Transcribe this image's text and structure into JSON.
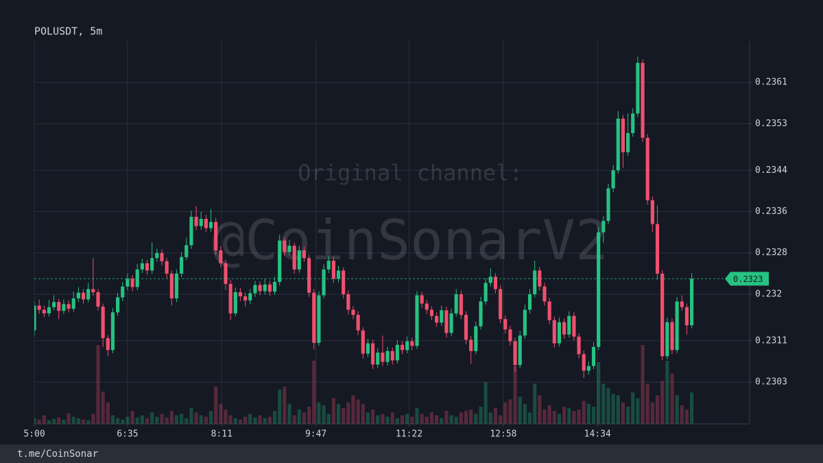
{
  "chart_data": {
    "type": "candlestick",
    "title": "POLUSDT, 5m",
    "watermark": [
      "Original channel:",
      "@CoinSonarV2"
    ],
    "footer": "t.me/CoinSonar",
    "up_color": "#26c281",
    "down_color": "#f0506e",
    "xlim": [
      300,
      1029
    ],
    "ylim": [
      0.22949,
      0.2369
    ],
    "yticks": [
      0.2303,
      0.2311,
      0.232,
      0.2328,
      0.2336,
      0.2344,
      0.2353,
      0.2361
    ],
    "xticks": [
      {
        "value": 300,
        "label": "5:00"
      },
      {
        "value": 395,
        "label": "6:35"
      },
      {
        "value": 491,
        "label": "8:11"
      },
      {
        "value": 587,
        "label": "9:47"
      },
      {
        "value": 682,
        "label": "11:22"
      },
      {
        "value": 778,
        "label": "12:58"
      },
      {
        "value": 874,
        "label": "14:34"
      }
    ],
    "grid": true,
    "x": [
      300,
      305,
      310,
      315,
      320,
      325,
      330,
      335,
      340,
      345,
      350,
      355,
      360,
      365,
      370,
      375,
      380,
      385,
      390,
      395,
      400,
      405,
      410,
      415,
      420,
      425,
      430,
      435,
      440,
      445,
      450,
      455,
      460,
      465,
      470,
      475,
      480,
      485,
      490,
      495,
      500,
      505,
      510,
      515,
      520,
      525,
      530,
      535,
      540,
      545,
      550,
      555,
      560,
      565,
      570,
      575,
      580,
      585,
      590,
      595,
      600,
      605,
      610,
      615,
      620,
      625,
      630,
      635,
      640,
      645,
      650,
      655,
      660,
      665,
      670,
      675,
      680,
      685,
      690,
      695,
      700,
      705,
      710,
      715,
      720,
      725,
      730,
      735,
      740,
      745,
      750,
      755,
      760,
      765,
      770,
      775,
      780,
      785,
      790,
      795,
      800,
      805,
      810,
      815,
      820,
      825,
      830,
      835,
      840,
      845,
      850,
      855,
      860,
      865,
      870,
      875,
      880,
      885,
      890,
      895,
      900,
      905,
      910,
      915,
      920,
      925,
      930,
      935,
      940,
      945,
      950,
      955,
      960,
      965,
      970
    ],
    "ohlc": [
      [
        0.2313,
        0.23186,
        0.2312,
        0.23178
      ],
      [
        0.23178,
        0.2319,
        0.23162,
        0.2317
      ],
      [
        0.2317,
        0.23178,
        0.23156,
        0.23163
      ],
      [
        0.23163,
        0.23189,
        0.23157,
        0.23175
      ],
      [
        0.23175,
        0.23198,
        0.23169,
        0.23185
      ],
      [
        0.23185,
        0.23191,
        0.23152,
        0.23168
      ],
      [
        0.23168,
        0.2319,
        0.23162,
        0.23181
      ],
      [
        0.23181,
        0.23188,
        0.23165,
        0.23172
      ],
      [
        0.23172,
        0.23205,
        0.23166,
        0.23192
      ],
      [
        0.23192,
        0.23214,
        0.23185,
        0.23203
      ],
      [
        0.23203,
        0.2321,
        0.23182,
        0.2319
      ],
      [
        0.2319,
        0.23222,
        0.23184,
        0.2321
      ],
      [
        0.2321,
        0.2327,
        0.23197,
        0.23204
      ],
      [
        0.23204,
        0.2321,
        0.23168,
        0.23176
      ],
      [
        0.23176,
        0.23182,
        0.23098,
        0.23115
      ],
      [
        0.23115,
        0.23121,
        0.2308,
        0.23092
      ],
      [
        0.23092,
        0.23173,
        0.23086,
        0.23165
      ],
      [
        0.23165,
        0.23203,
        0.23158,
        0.23194
      ],
      [
        0.23194,
        0.23224,
        0.23187,
        0.23215
      ],
      [
        0.23215,
        0.2324,
        0.23208,
        0.2323
      ],
      [
        0.2323,
        0.23237,
        0.23206,
        0.23214
      ],
      [
        0.23214,
        0.23259,
        0.23208,
        0.23248
      ],
      [
        0.23248,
        0.23269,
        0.23241,
        0.2326
      ],
      [
        0.2326,
        0.23267,
        0.23238,
        0.23246
      ],
      [
        0.23246,
        0.233,
        0.2324,
        0.2327
      ],
      [
        0.2327,
        0.23288,
        0.23263,
        0.2328
      ],
      [
        0.2328,
        0.23287,
        0.23256,
        0.23264
      ],
      [
        0.23264,
        0.2327,
        0.23231,
        0.2324
      ],
      [
        0.2324,
        0.23246,
        0.23178,
        0.23192
      ],
      [
        0.23192,
        0.23248,
        0.23185,
        0.2324
      ],
      [
        0.2324,
        0.23281,
        0.23233,
        0.23272
      ],
      [
        0.23272,
        0.2331,
        0.23266,
        0.23295
      ],
      [
        0.23295,
        0.23362,
        0.23288,
        0.2335
      ],
      [
        0.2335,
        0.23371,
        0.23324,
        0.23332
      ],
      [
        0.23332,
        0.2336,
        0.23325,
        0.23346
      ],
      [
        0.23346,
        0.23354,
        0.2332,
        0.23328
      ],
      [
        0.23328,
        0.23365,
        0.23321,
        0.2334
      ],
      [
        0.2334,
        0.23348,
        0.23276,
        0.23285
      ],
      [
        0.23285,
        0.23293,
        0.23252,
        0.2326
      ],
      [
        0.2326,
        0.23267,
        0.23208,
        0.2322
      ],
      [
        0.2322,
        0.23228,
        0.2315,
        0.23163
      ],
      [
        0.23163,
        0.23213,
        0.23158,
        0.23204
      ],
      [
        0.23204,
        0.23212,
        0.23187,
        0.23196
      ],
      [
        0.23196,
        0.23203,
        0.23176,
        0.23188
      ],
      [
        0.23188,
        0.2321,
        0.23181,
        0.23202
      ],
      [
        0.23202,
        0.23226,
        0.23195,
        0.23218
      ],
      [
        0.23218,
        0.23225,
        0.23198,
        0.23206
      ],
      [
        0.23206,
        0.2323,
        0.23199,
        0.23219
      ],
      [
        0.23219,
        0.23226,
        0.23197,
        0.23205
      ],
      [
        0.23205,
        0.23234,
        0.23199,
        0.23224
      ],
      [
        0.23224,
        0.23315,
        0.23217,
        0.23304
      ],
      [
        0.23304,
        0.2331,
        0.23275,
        0.23282
      ],
      [
        0.23282,
        0.23305,
        0.23275,
        0.23294
      ],
      [
        0.23294,
        0.233,
        0.2324,
        0.23248
      ],
      [
        0.23248,
        0.23294,
        0.23242,
        0.23285
      ],
      [
        0.23285,
        0.23292,
        0.23263,
        0.2327
      ],
      [
        0.2327,
        0.23276,
        0.23195,
        0.23203
      ],
      [
        0.23203,
        0.2321,
        0.23093,
        0.23106
      ],
      [
        0.23106,
        0.23206,
        0.231,
        0.23198
      ],
      [
        0.23198,
        0.23258,
        0.23192,
        0.23248
      ],
      [
        0.23248,
        0.23274,
        0.23241,
        0.23265
      ],
      [
        0.23265,
        0.23272,
        0.23222,
        0.2323
      ],
      [
        0.2323,
        0.23255,
        0.23223,
        0.23246
      ],
      [
        0.23246,
        0.23252,
        0.23192,
        0.232
      ],
      [
        0.232,
        0.23207,
        0.23161,
        0.2317
      ],
      [
        0.2317,
        0.23177,
        0.23152,
        0.2316
      ],
      [
        0.2316,
        0.23167,
        0.23121,
        0.2313
      ],
      [
        0.2313,
        0.23136,
        0.23075,
        0.23085
      ],
      [
        0.23085,
        0.23114,
        0.23078,
        0.23105
      ],
      [
        0.23105,
        0.23112,
        0.23055,
        0.23064
      ],
      [
        0.23064,
        0.23096,
        0.23057,
        0.23087
      ],
      [
        0.23087,
        0.2312,
        0.23061,
        0.23069
      ],
      [
        0.23069,
        0.23098,
        0.23062,
        0.2309
      ],
      [
        0.2309,
        0.23097,
        0.23064,
        0.23072
      ],
      [
        0.23072,
        0.23111,
        0.23066,
        0.23102
      ],
      [
        0.23102,
        0.23109,
        0.23084,
        0.23092
      ],
      [
        0.23092,
        0.23118,
        0.23086,
        0.23109
      ],
      [
        0.23109,
        0.23116,
        0.23092,
        0.231
      ],
      [
        0.231,
        0.23206,
        0.23094,
        0.23198
      ],
      [
        0.23198,
        0.23205,
        0.23174,
        0.23182
      ],
      [
        0.23182,
        0.23189,
        0.23162,
        0.2317
      ],
      [
        0.2317,
        0.23177,
        0.2315,
        0.23158
      ],
      [
        0.23158,
        0.23165,
        0.23137,
        0.23145
      ],
      [
        0.23145,
        0.23178,
        0.23139,
        0.23169
      ],
      [
        0.23169,
        0.23176,
        0.23116,
        0.23125
      ],
      [
        0.23125,
        0.23172,
        0.23119,
        0.23163
      ],
      [
        0.23163,
        0.2321,
        0.23157,
        0.232
      ],
      [
        0.232,
        0.23207,
        0.23152,
        0.2316
      ],
      [
        0.2316,
        0.23167,
        0.23103,
        0.23112
      ],
      [
        0.23112,
        0.23119,
        0.23065,
        0.2309
      ],
      [
        0.2309,
        0.23147,
        0.23084,
        0.23138
      ],
      [
        0.23138,
        0.23195,
        0.23132,
        0.23186
      ],
      [
        0.23186,
        0.23231,
        0.2318,
        0.23222
      ],
      [
        0.23222,
        0.2325,
        0.23215,
        0.23234
      ],
      [
        0.23234,
        0.23241,
        0.23202,
        0.2321
      ],
      [
        0.2321,
        0.23217,
        0.23144,
        0.23152
      ],
      [
        0.23152,
        0.23159,
        0.23124,
        0.23132
      ],
      [
        0.23132,
        0.23139,
        0.23101,
        0.23109
      ],
      [
        0.23109,
        0.23116,
        0.2305,
        0.23063
      ],
      [
        0.23063,
        0.23129,
        0.23057,
        0.2312
      ],
      [
        0.2312,
        0.2318,
        0.23114,
        0.2317
      ],
      [
        0.2317,
        0.2321,
        0.23163,
        0.232
      ],
      [
        0.232,
        0.23265,
        0.23194,
        0.23246
      ],
      [
        0.23246,
        0.23253,
        0.23207,
        0.23215
      ],
      [
        0.23215,
        0.23222,
        0.23178,
        0.23186
      ],
      [
        0.23186,
        0.23193,
        0.23142,
        0.2315
      ],
      [
        0.2315,
        0.23157,
        0.23097,
        0.23105
      ],
      [
        0.23105,
        0.23155,
        0.23099,
        0.23146
      ],
      [
        0.23146,
        0.23153,
        0.23114,
        0.23122
      ],
      [
        0.23122,
        0.23167,
        0.23116,
        0.23158
      ],
      [
        0.23158,
        0.23165,
        0.2311,
        0.23118
      ],
      [
        0.23118,
        0.23125,
        0.23076,
        0.23084
      ],
      [
        0.23084,
        0.23091,
        0.23038,
        0.23052
      ],
      [
        0.23052,
        0.2307,
        0.23044,
        0.23061
      ],
      [
        0.23061,
        0.23107,
        0.23055,
        0.23098
      ],
      [
        0.23098,
        0.2333,
        0.23092,
        0.2332
      ],
      [
        0.2332,
        0.23351,
        0.233,
        0.23342
      ],
      [
        0.23342,
        0.23414,
        0.23336,
        0.23405
      ],
      [
        0.23405,
        0.2345,
        0.23398,
        0.2344
      ],
      [
        0.2344,
        0.23555,
        0.23434,
        0.2354
      ],
      [
        0.2354,
        0.23547,
        0.23445,
        0.23475
      ],
      [
        0.23475,
        0.2355,
        0.23468,
        0.23512
      ],
      [
        0.23512,
        0.2356,
        0.23505,
        0.2355
      ],
      [
        0.2355,
        0.2366,
        0.23543,
        0.23648
      ],
      [
        0.23648,
        0.23655,
        0.23495,
        0.23503
      ],
      [
        0.23503,
        0.2351,
        0.23374,
        0.23382
      ],
      [
        0.23382,
        0.23389,
        0.2332,
        0.23336
      ],
      [
        0.23336,
        0.23372,
        0.23228,
        0.2324
      ],
      [
        0.2324,
        0.23247,
        0.23072,
        0.2308
      ],
      [
        0.2308,
        0.23155,
        0.23074,
        0.23146
      ],
      [
        0.23146,
        0.23153,
        0.23084,
        0.23092
      ],
      [
        0.23092,
        0.23195,
        0.23086,
        0.23186
      ],
      [
        0.23186,
        0.23198,
        0.23168,
        0.23175
      ],
      [
        0.23175,
        0.23182,
        0.23122,
        0.2314
      ],
      [
        0.2314,
        0.23241,
        0.23134,
        0.2323
      ]
    ],
    "volume": [
      8,
      6,
      12,
      5,
      7,
      9,
      6,
      15,
      10,
      8,
      6,
      5,
      14,
      110,
      45,
      30,
      12,
      8,
      6,
      10,
      18,
      9,
      12,
      8,
      16,
      10,
      14,
      9,
      18,
      12,
      14,
      8,
      22,
      16,
      12,
      10,
      18,
      52,
      28,
      20,
      12,
      8,
      6,
      10,
      14,
      9,
      12,
      8,
      10,
      18,
      48,
      52,
      28,
      12,
      20,
      16,
      24,
      88,
      30,
      26,
      14,
      36,
      28,
      22,
      30,
      40,
      34,
      28,
      16,
      20,
      12,
      14,
      10,
      16,
      8,
      12,
      14,
      10,
      22,
      14,
      10,
      16,
      12,
      8,
      18,
      12,
      10,
      16,
      18,
      20,
      14,
      24,
      58,
      16,
      22,
      12,
      30,
      34,
      80,
      38,
      28,
      16,
      56,
      40,
      20,
      26,
      18,
      14,
      24,
      22,
      18,
      20,
      32,
      28,
      24,
      86,
      56,
      50,
      42,
      40,
      30,
      24,
      44,
      36,
      110,
      56,
      30,
      40,
      60,
      88,
      70,
      40,
      26,
      20,
      44
    ]
  }
}
